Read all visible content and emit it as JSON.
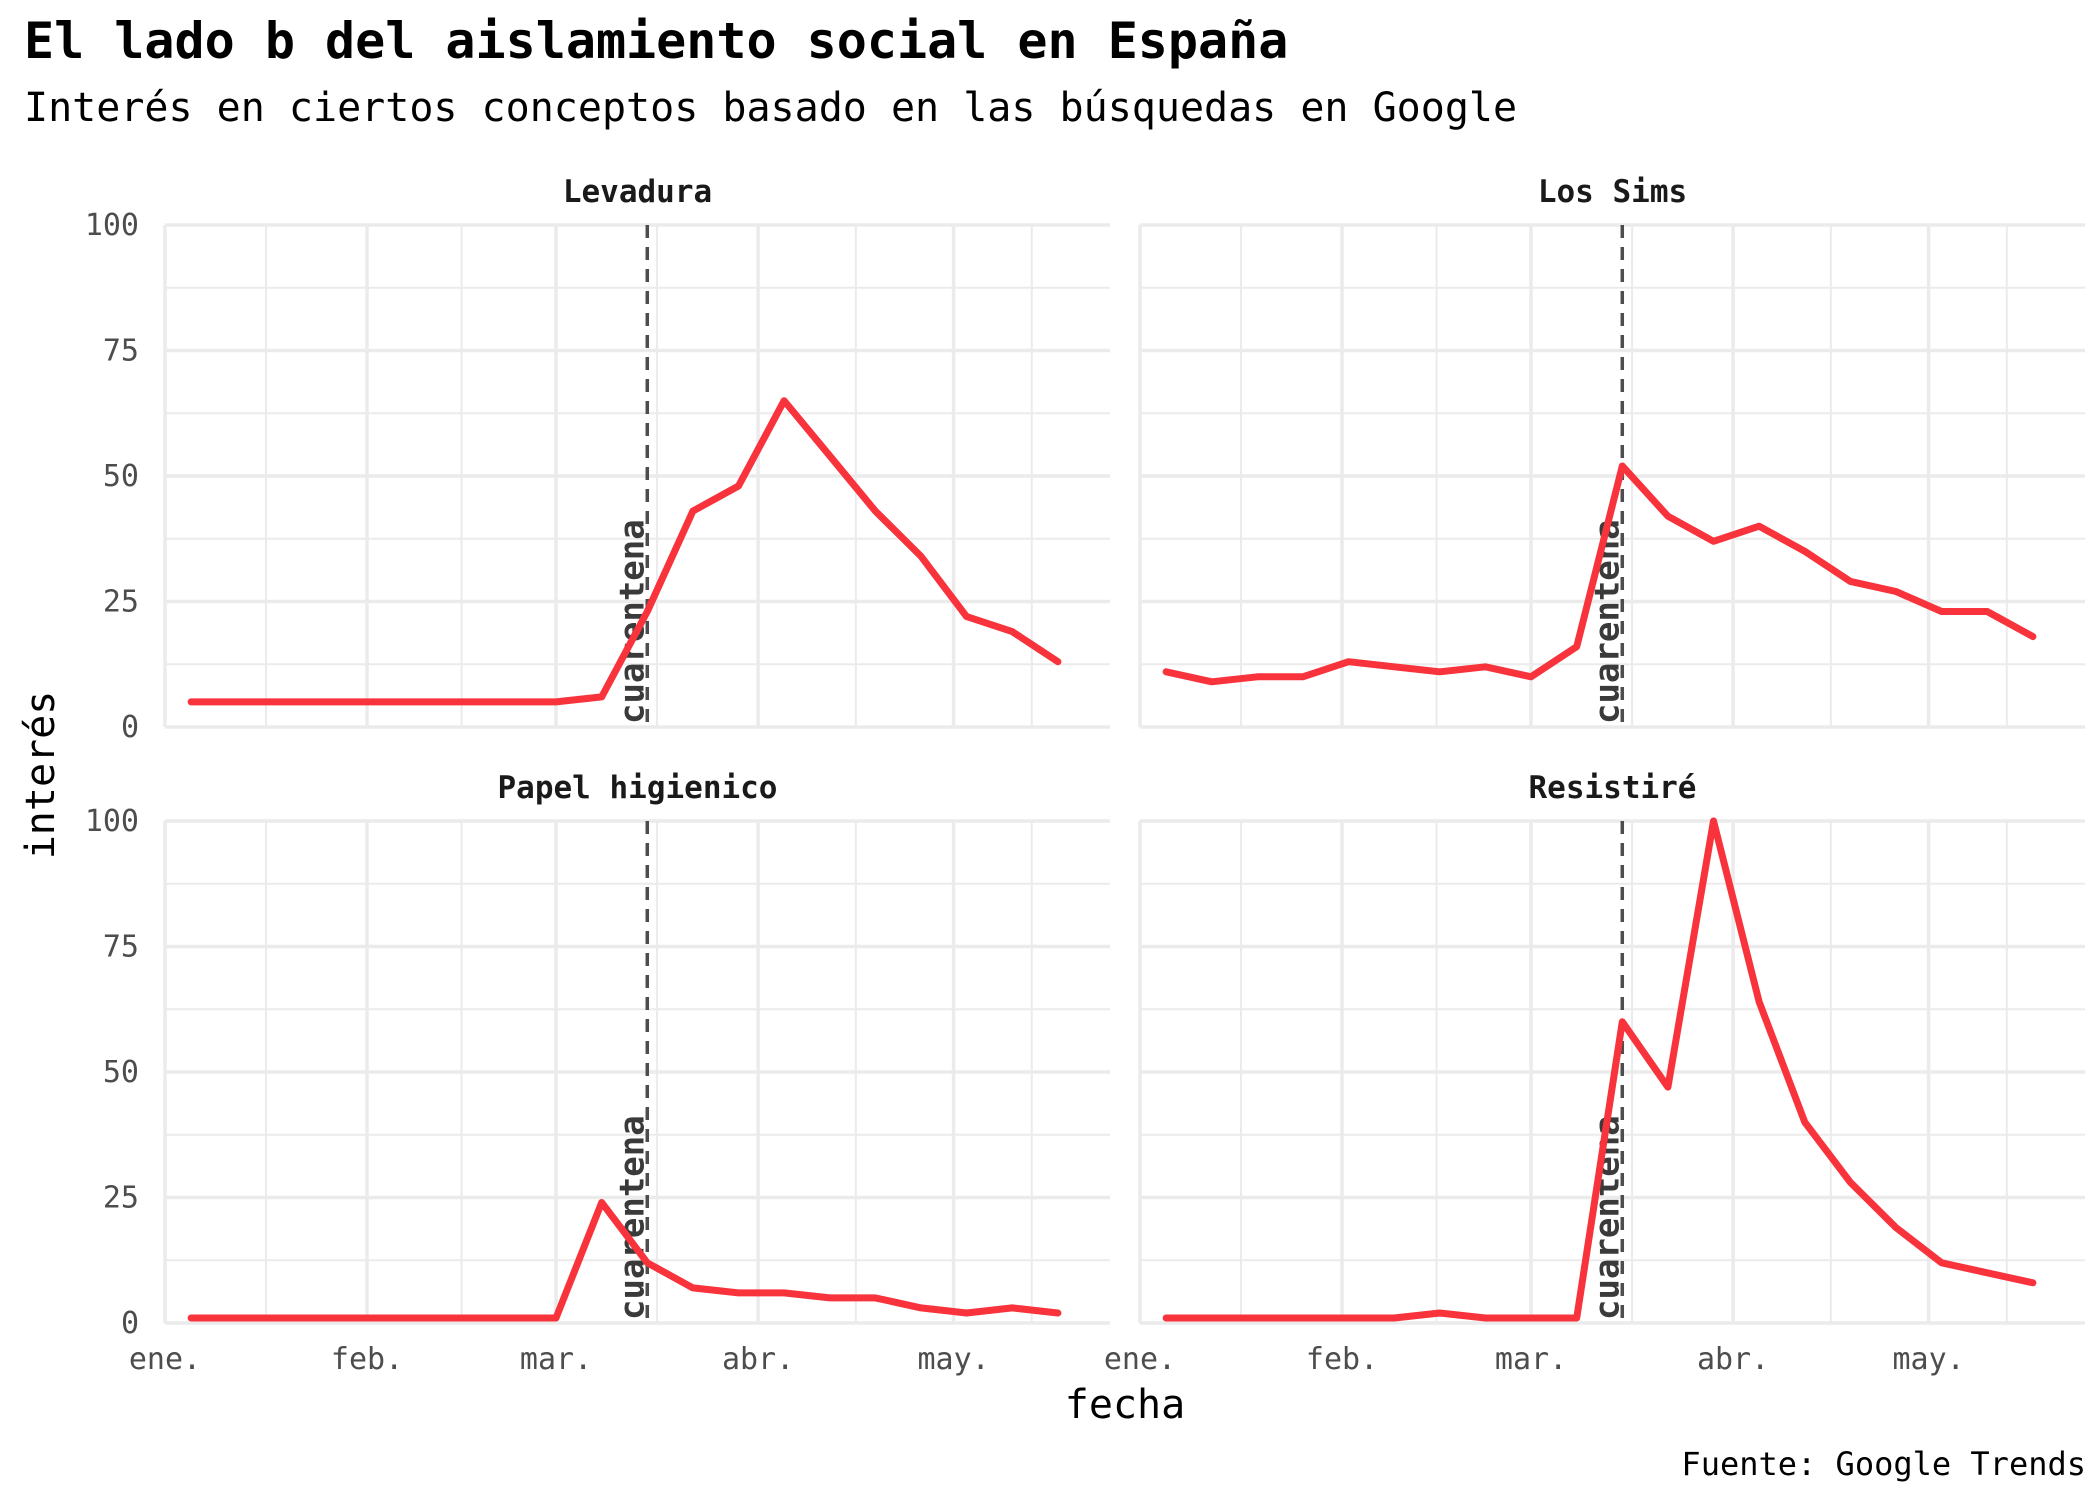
{
  "title": "El lado b del aislamiento social en España",
  "subtitle": "Interés en ciertos conceptos basado en las búsquedas en Google",
  "caption": "Fuente: Google Trends",
  "colors": {
    "line": "#f8333c",
    "grid": "#ebebeb",
    "vline": "#4d4d4d",
    "text": "#4d4d4d"
  },
  "chart_data": {
    "type": "line",
    "xlabel": "fecha",
    "ylabel": "interés",
    "ylim": [
      0,
      100
    ],
    "yticks": [
      0,
      25,
      50,
      75,
      100
    ],
    "xlim": [
      "2020-01-01",
      "2020-05-25"
    ],
    "xticks": [
      {
        "date": "2020-01-01",
        "label": "ene."
      },
      {
        "date": "2020-02-01",
        "label": "feb."
      },
      {
        "date": "2020-03-01",
        "label": "mar."
      },
      {
        "date": "2020-04-01",
        "label": "abr."
      },
      {
        "date": "2020-05-01",
        "label": "may."
      }
    ],
    "vline": {
      "date": "2020-03-15",
      "label": "cuarentena"
    },
    "grid": true,
    "panels": [
      {
        "name": "Levadura",
        "points": [
          [
            "2020-01-05",
            5
          ],
          [
            "2020-01-12",
            5
          ],
          [
            "2020-01-19",
            5
          ],
          [
            "2020-01-26",
            5
          ],
          [
            "2020-02-02",
            5
          ],
          [
            "2020-02-09",
            5
          ],
          [
            "2020-02-16",
            5
          ],
          [
            "2020-02-23",
            5
          ],
          [
            "2020-03-01",
            5
          ],
          [
            "2020-03-08",
            6
          ],
          [
            "2020-03-15",
            23
          ],
          [
            "2020-03-22",
            43
          ],
          [
            "2020-03-29",
            48
          ],
          [
            "2020-04-05",
            65
          ],
          [
            "2020-04-12",
            54
          ],
          [
            "2020-04-19",
            43
          ],
          [
            "2020-04-26",
            34
          ],
          [
            "2020-05-03",
            22
          ],
          [
            "2020-05-10",
            19
          ],
          [
            "2020-05-17",
            13
          ]
        ]
      },
      {
        "name": "Los Sims",
        "points": [
          [
            "2020-01-05",
            11
          ],
          [
            "2020-01-12",
            9
          ],
          [
            "2020-01-19",
            10
          ],
          [
            "2020-01-26",
            10
          ],
          [
            "2020-02-02",
            13
          ],
          [
            "2020-02-09",
            12
          ],
          [
            "2020-02-16",
            11
          ],
          [
            "2020-02-23",
            12
          ],
          [
            "2020-03-01",
            10
          ],
          [
            "2020-03-08",
            16
          ],
          [
            "2020-03-15",
            52
          ],
          [
            "2020-03-22",
            42
          ],
          [
            "2020-03-29",
            37
          ],
          [
            "2020-04-05",
            40
          ],
          [
            "2020-04-12",
            35
          ],
          [
            "2020-04-19",
            29
          ],
          [
            "2020-04-26",
            27
          ],
          [
            "2020-05-03",
            23
          ],
          [
            "2020-05-10",
            23
          ],
          [
            "2020-05-17",
            18
          ]
        ]
      },
      {
        "name": "Papel higienico",
        "points": [
          [
            "2020-01-05",
            1
          ],
          [
            "2020-01-12",
            1
          ],
          [
            "2020-01-19",
            1
          ],
          [
            "2020-01-26",
            1
          ],
          [
            "2020-02-02",
            1
          ],
          [
            "2020-02-09",
            1
          ],
          [
            "2020-02-16",
            1
          ],
          [
            "2020-02-23",
            1
          ],
          [
            "2020-03-01",
            1
          ],
          [
            "2020-03-08",
            24
          ],
          [
            "2020-03-15",
            12
          ],
          [
            "2020-03-22",
            7
          ],
          [
            "2020-03-29",
            6
          ],
          [
            "2020-04-05",
            6
          ],
          [
            "2020-04-12",
            5
          ],
          [
            "2020-04-19",
            5
          ],
          [
            "2020-04-26",
            3
          ],
          [
            "2020-05-03",
            2
          ],
          [
            "2020-05-10",
            3
          ],
          [
            "2020-05-17",
            2
          ]
        ]
      },
      {
        "name": "Resistiré",
        "points": [
          [
            "2020-01-05",
            1
          ],
          [
            "2020-01-12",
            1
          ],
          [
            "2020-01-19",
            1
          ],
          [
            "2020-01-26",
            1
          ],
          [
            "2020-02-02",
            1
          ],
          [
            "2020-02-09",
            1
          ],
          [
            "2020-02-16",
            2
          ],
          [
            "2020-02-23",
            1
          ],
          [
            "2020-03-01",
            1
          ],
          [
            "2020-03-08",
            1
          ],
          [
            "2020-03-15",
            60
          ],
          [
            "2020-03-22",
            47
          ],
          [
            "2020-03-29",
            100
          ],
          [
            "2020-04-05",
            64
          ],
          [
            "2020-04-12",
            40
          ],
          [
            "2020-04-19",
            28
          ],
          [
            "2020-04-26",
            19
          ],
          [
            "2020-05-03",
            12
          ],
          [
            "2020-05-10",
            10
          ],
          [
            "2020-05-17",
            8
          ]
        ]
      }
    ]
  }
}
